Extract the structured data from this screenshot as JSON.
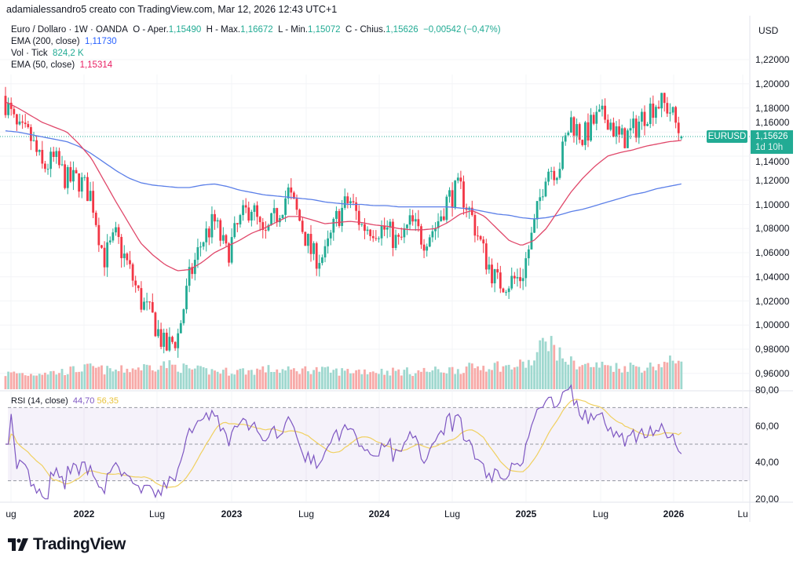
{
  "header": {
    "credit": "adamialessandro5 creato con TradingView.com, Mar 12, 2026 12:43 UTC+1"
  },
  "legend": {
    "symbol": "Euro / Dollaro · 1W · OANDA",
    "o_label": "O - Aper.",
    "o": "1,15490",
    "h_label": "H - Max.",
    "h": "1,16672",
    "l_label": "L - Min.",
    "l": "1,15072",
    "c_label": "C - Chius.",
    "c": "1,15626",
    "change": "−0,00542 (−0,47%)",
    "ema200_label": "EMA (200, close)",
    "ema200": "1,11730",
    "vol_label": "Vol · Tick",
    "vol": "824,2 K",
    "ema50_label": "EMA (50, close)",
    "ema50": "1,15314",
    "rsi_label": "RSI (14, close)",
    "rsi": "44,70",
    "rsi_ma": "56,35"
  },
  "colors": {
    "up": "#22ab94",
    "down": "#f23645",
    "ema200": "#5b7fe8",
    "ema50": "#e0486a",
    "rsi": "#7e57c2",
    "rsi_ma": "#f0d060",
    "vol_up": "#9fd8cf",
    "vol_down": "#f7a9a7"
  },
  "axis": {
    "currency": "USD",
    "price_ticks": [
      "1,22000",
      "1,20000",
      "1,18000",
      "1,16000",
      "1,14000",
      "1,12000",
      "1,10000",
      "1,08000",
      "1,06000",
      "1,04000",
      "1,02000",
      "1,00000",
      "0,98000",
      "0,96000",
      "80,00"
    ],
    "rsi_ticks": [
      "60,00",
      "40,00",
      "20,00"
    ],
    "time_ticks": [
      {
        "t": "ug",
        "bold": false
      },
      {
        "t": "2022",
        "bold": true
      },
      {
        "t": "Lug",
        "bold": false
      },
      {
        "t": "2023",
        "bold": true
      },
      {
        "t": "Lug",
        "bold": false
      },
      {
        "t": "2024",
        "bold": true
      },
      {
        "t": "Lug",
        "bold": false
      },
      {
        "t": "2025",
        "bold": true
      },
      {
        "t": "Lug",
        "bold": false
      },
      {
        "t": "2026",
        "bold": true
      },
      {
        "t": "Lu",
        "bold": false
      }
    ]
  },
  "price_label": {
    "symbol": "EURUSD",
    "price": "1,15626",
    "countdown": "1d 10h"
  },
  "brand": "TradingView",
  "chart_data": {
    "type": "candlestick",
    "interval": "1W",
    "ylim": [
      0.95,
      1.225
    ],
    "start_month": "2021-08",
    "monthly_close": [
      1.185,
      1.16,
      1.156,
      1.13,
      1.137,
      1.12,
      1.12,
      1.107,
      1.055,
      1.073,
      1.048,
      1.02,
      1.005,
      0.98,
      0.99,
      1.04,
      1.07,
      1.086,
      1.058,
      1.084,
      1.1,
      1.07,
      1.09,
      1.11,
      1.085,
      1.057,
      1.057,
      1.09,
      1.104,
      1.082,
      1.081,
      1.079,
      1.067,
      1.085,
      1.071,
      1.082,
      1.105,
      1.113,
      1.088,
      1.057,
      1.035,
      1.036,
      1.04,
      1.08,
      1.13,
      1.13,
      1.17,
      1.155,
      1.17,
      1.173,
      1.153,
      1.16,
      1.175,
      1.185,
      1.18,
      1.156
    ],
    "ema200": [
      1.161,
      1.16,
      1.158,
      1.156,
      1.154,
      1.152,
      1.148,
      1.142,
      1.135,
      1.128,
      1.122,
      1.118,
      1.116,
      1.115,
      1.114,
      1.114,
      1.116,
      1.117,
      1.115,
      1.112,
      1.11,
      1.108,
      1.107,
      1.106,
      1.105,
      1.104,
      1.102,
      1.101,
      1.1,
      1.1,
      1.099,
      1.099,
      1.098,
      1.098,
      1.098,
      1.098,
      1.098,
      1.097,
      1.096,
      1.094,
      1.092,
      1.091,
      1.089,
      1.088,
      1.089,
      1.091,
      1.094,
      1.096,
      1.099,
      1.102,
      1.105,
      1.108,
      1.11,
      1.113,
      1.115,
      1.117
    ],
    "ema50": [
      1.185,
      1.18,
      1.174,
      1.168,
      1.164,
      1.16,
      1.15,
      1.138,
      1.12,
      1.102,
      1.085,
      1.068,
      1.058,
      1.05,
      1.045,
      1.046,
      1.052,
      1.06,
      1.065,
      1.07,
      1.076,
      1.08,
      1.085,
      1.09,
      1.09,
      1.087,
      1.084,
      1.085,
      1.086,
      1.085,
      1.083,
      1.082,
      1.08,
      1.079,
      1.079,
      1.08,
      1.085,
      1.092,
      1.095,
      1.09,
      1.08,
      1.07,
      1.066,
      1.07,
      1.08,
      1.095,
      1.11,
      1.122,
      1.132,
      1.14,
      1.143,
      1.145,
      1.148,
      1.15,
      1.152,
      1.153
    ],
    "volume_k": [
      400,
      420,
      380,
      450,
      430,
      470,
      520,
      560,
      500,
      480,
      520,
      560,
      600,
      640,
      580,
      520,
      480,
      470,
      460,
      480,
      470,
      520,
      500,
      480,
      500,
      520,
      480,
      460,
      470,
      480,
      470,
      460,
      470,
      450,
      470,
      480,
      500,
      520,
      560,
      600,
      620,
      560,
      640,
      700,
      1400,
      900,
      700,
      620,
      600,
      620,
      560,
      600,
      560,
      620,
      700,
      824.2
    ],
    "rsi_current": 44.7,
    "rsi_ma_current": 56.35,
    "rsi_levels": [
      70,
      50,
      30
    ]
  }
}
